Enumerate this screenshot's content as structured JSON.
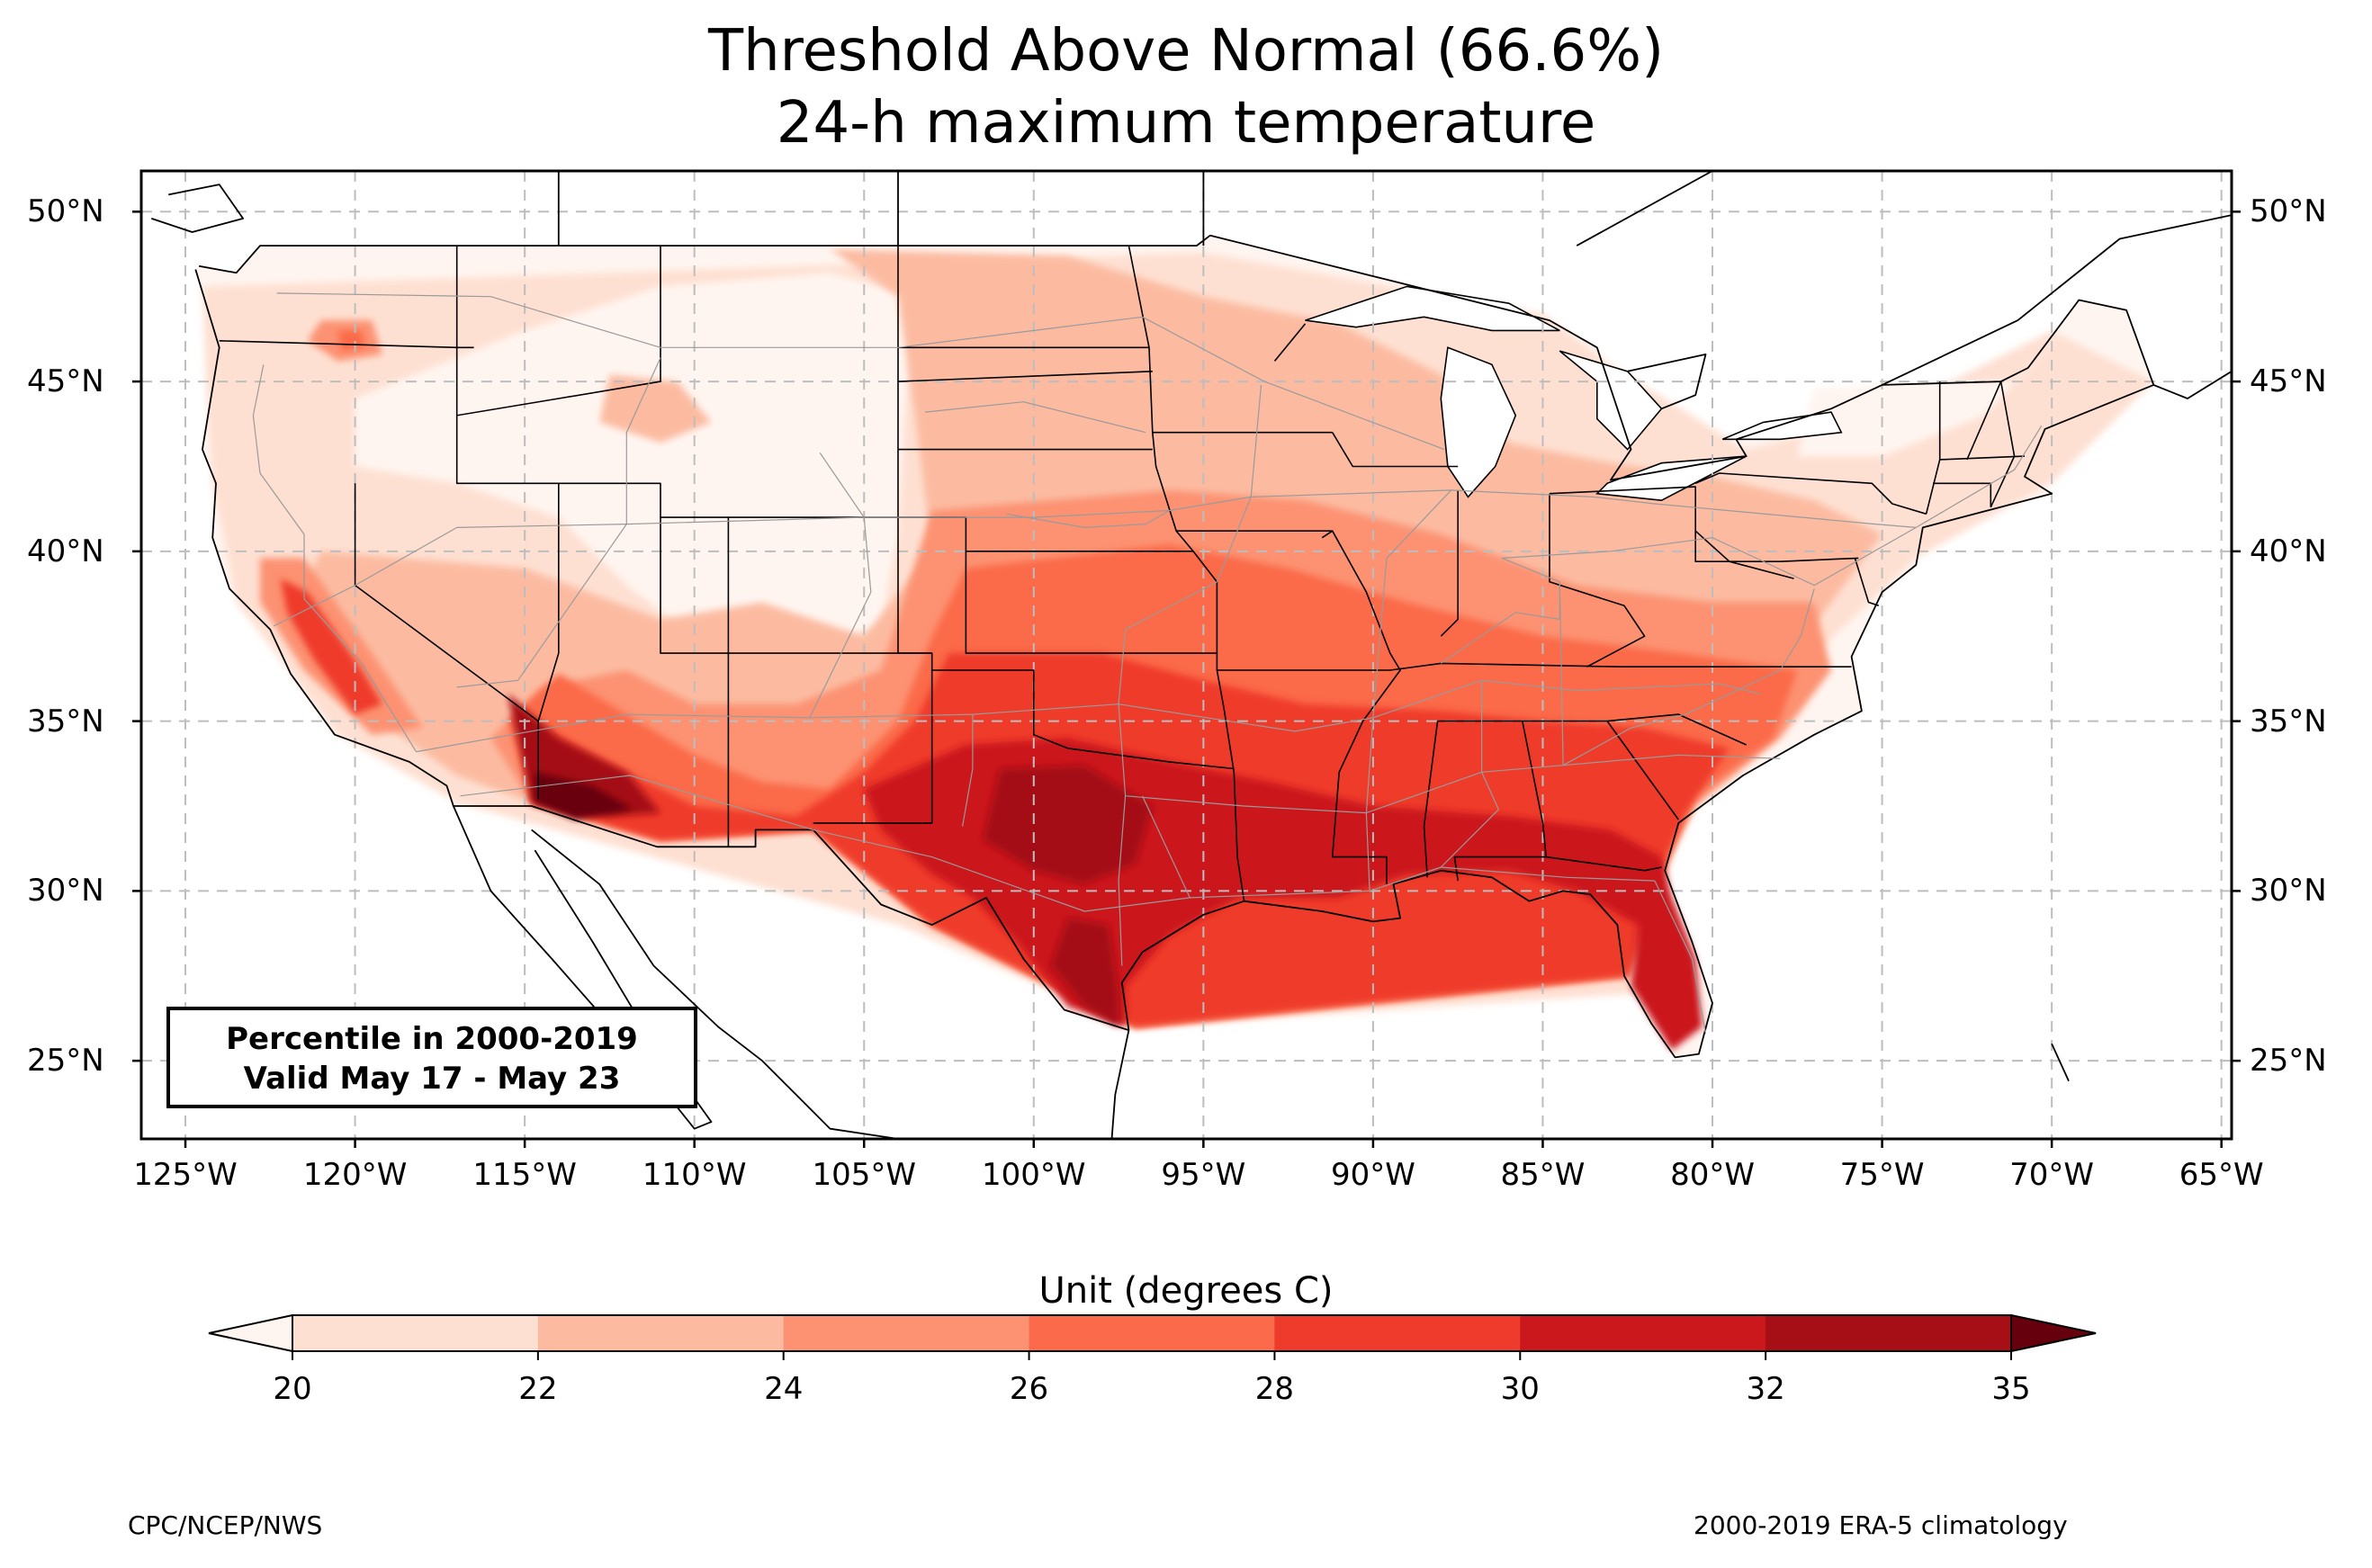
{
  "title": {
    "line1": "Threshold Above Normal (66.6%)",
    "line2": "24-h maximum temperature"
  },
  "map": {
    "lat_ticks": [
      "50°N",
      "45°N",
      "40°N",
      "35°N",
      "30°N",
      "25°N"
    ],
    "lon_ticks": [
      "125°W",
      "120°W",
      "115°W",
      "110°W",
      "105°W",
      "100°W",
      "95°W",
      "90°W",
      "85°W",
      "80°W",
      "75°W",
      "70°W",
      "65°W"
    ],
    "lon_range": [
      -126.3,
      -64.7
    ],
    "lat_range": [
      22.7,
      51.2
    ],
    "gridlines": true,
    "annotation": {
      "line1": "Percentile in 2000-2019",
      "line2": "Valid May 17 - May 23"
    }
  },
  "colorbar": {
    "label": "Unit (degrees C)",
    "ticks": [
      "20",
      "22",
      "24",
      "26",
      "28",
      "30",
      "32",
      "35"
    ],
    "colors": [
      "#fee0d2",
      "#fcbba1",
      "#fc9272",
      "#fb6a4a",
      "#ef3b2c",
      "#cb181d",
      "#a50f15"
    ],
    "under_color": "#fff5f0",
    "over_color": "#67000d"
  },
  "credits": {
    "left": "CPC/NCEP/NWS",
    "right": "2000-2019 ERA-5 climatology"
  },
  "chart_data": {
    "type": "heatmap",
    "title": "Threshold Above Normal (66.6%) 24-h maximum temperature",
    "xlabel": "",
    "ylabel": "",
    "xlim": [
      -126.3,
      -64.7
    ],
    "ylim": [
      22.7,
      51.2
    ],
    "color_levels": [
      20,
      22,
      24,
      26,
      28,
      30,
      32,
      35
    ],
    "colorbar_label": "Unit (degrees C)",
    "grid": true,
    "regions": [
      {
        "name": "",
        "lat": 33.0,
        "lon": -113.5,
        "level": "> 35"
      },
      {
        "name": "",
        "lat": 27.5,
        "lon": -98.5,
        "level": "32-35"
      },
      {
        "name": "",
        "lat": 32.0,
        "lon": -99.0,
        "level": "32-35"
      },
      {
        "name": "",
        "lat": 31.5,
        "lon": -92.0,
        "level": "30-32"
      },
      {
        "name": "",
        "lat": 29.0,
        "lon": -81.5,
        "level": "30-32"
      },
      {
        "name": "",
        "lat": 34.5,
        "lon": -84.0,
        "level": "28-30"
      },
      {
        "name": "",
        "lat": 36.0,
        "lon": -79.0,
        "level": "26-28"
      },
      {
        "name": "",
        "lat": 37.5,
        "lon": -98.0,
        "level": "26-28"
      },
      {
        "name": "",
        "lat": 36.5,
        "lon": -120.5,
        "level": "28-30"
      },
      {
        "name": "",
        "lat": 41.0,
        "lon": -96.0,
        "level": "24-26"
      },
      {
        "name": "",
        "lat": 44.5,
        "lon": -100.0,
        "level": "22-24"
      },
      {
        "name": "",
        "lat": 46.2,
        "lon": -120.2,
        "level": "24-26"
      },
      {
        "name": "",
        "lat": 43.5,
        "lon": -109.0,
        "level": "< 20"
      },
      {
        "name": "",
        "lat": 44.0,
        "lon": -73.0,
        "level": "20-22"
      }
    ]
  }
}
